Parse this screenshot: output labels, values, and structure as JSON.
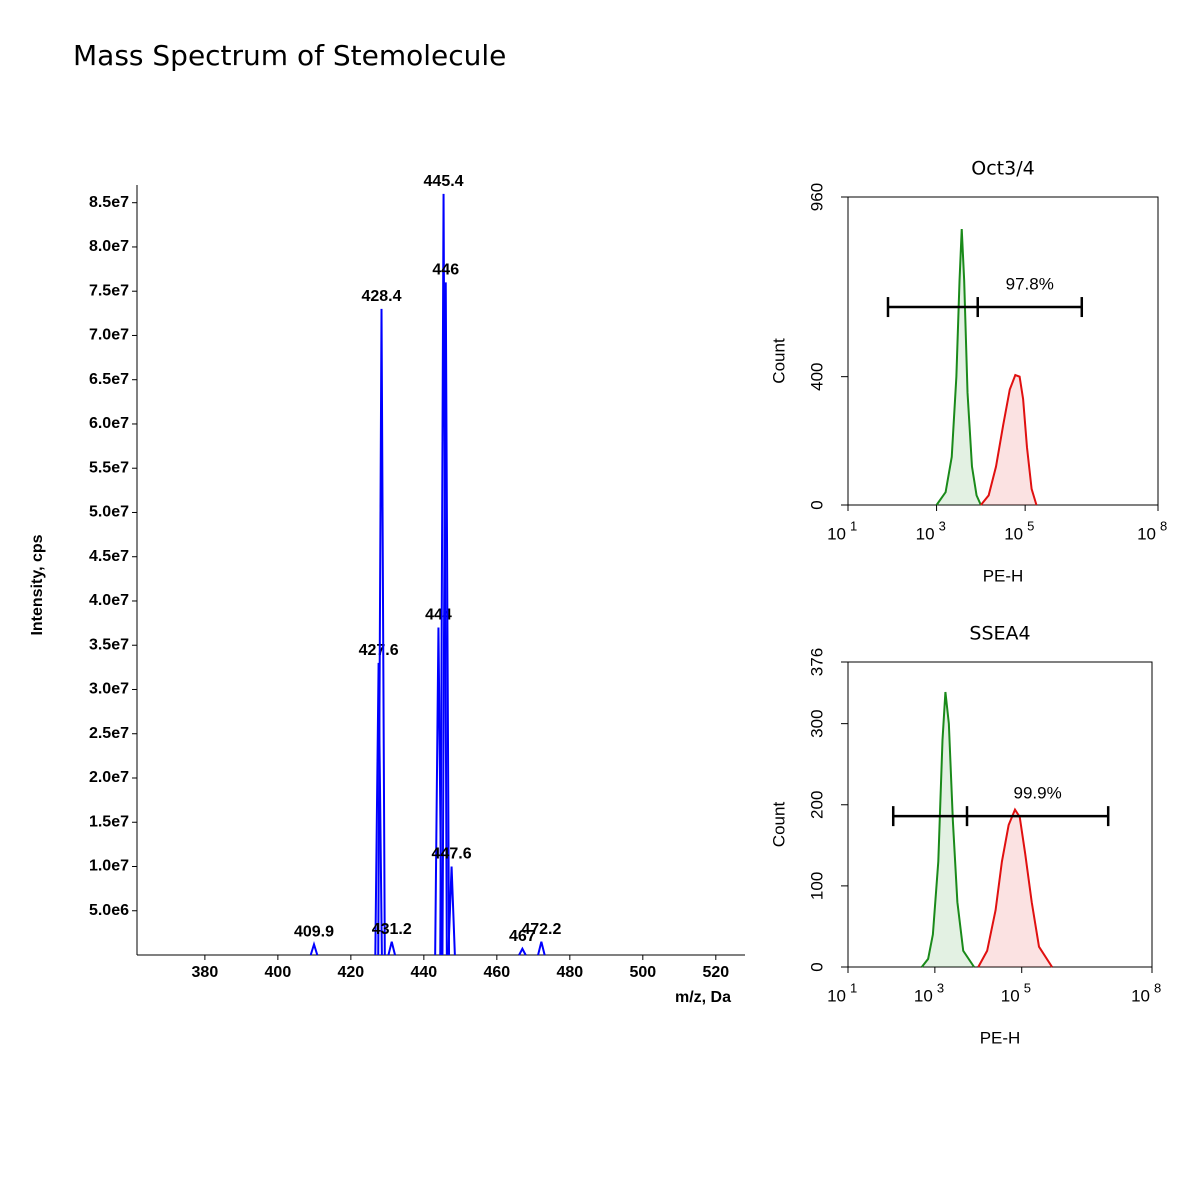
{
  "title": "Mass Spectrum of Stemolecule",
  "chart_data": [
    {
      "type": "spectrum",
      "x_label": "m/z, Da",
      "y_label": "Intensity, cps",
      "color": "#0000ff",
      "x": [
        409.9,
        427.6,
        428.4,
        431.2,
        444.0,
        445.4,
        446.0,
        447.6,
        467.0,
        472.2
      ],
      "values": [
        1200000,
        33000000,
        73000000,
        1500000,
        37000000,
        86000000,
        76000000,
        10000000,
        700000,
        1500000
      ],
      "xlim": [
        361.4,
        528
      ],
      "ylim": [
        0,
        87000000
      ],
      "xticks": [
        380,
        400,
        420,
        440,
        460,
        480,
        500,
        520
      ],
      "yticks": [
        {
          "value": 5000000,
          "label": "5.0e6"
        },
        {
          "value": 10000000,
          "label": "1.0e7"
        },
        {
          "value": 15000000,
          "label": "1.5e7"
        },
        {
          "value": 20000000,
          "label": "2.0e7"
        },
        {
          "value": 25000000,
          "label": "2.5e7"
        },
        {
          "value": 30000000,
          "label": "3.0e7"
        },
        {
          "value": 35000000,
          "label": "3.5e7"
        },
        {
          "value": 40000000,
          "label": "4.0e7"
        },
        {
          "value": 45000000,
          "label": "4.5e7"
        },
        {
          "value": 50000000,
          "label": "5.0e7"
        },
        {
          "value": 55000000,
          "label": "5.5e7"
        },
        {
          "value": 60000000,
          "label": "6.0e7"
        },
        {
          "value": 65000000,
          "label": "6.5e7"
        },
        {
          "value": 70000000,
          "label": "7.0e7"
        },
        {
          "value": 75000000,
          "label": "7.5e7"
        },
        {
          "value": 80000000,
          "label": "8.0e7"
        },
        {
          "value": 85000000,
          "label": "8.5e7"
        }
      ]
    },
    {
      "type": "histogram-overlay",
      "title": "Oct3/4",
      "x_label": "PE-H",
      "y_label": "Count",
      "log_x": true,
      "xlim": [
        10,
        100000000
      ],
      "ylim": [
        0,
        960
      ],
      "xticks": [
        {
          "value": 10,
          "label": "10",
          "exponent": "1"
        },
        {
          "value": 1000,
          "label": "10",
          "exponent": "3"
        },
        {
          "value": 100000,
          "label": "10",
          "exponent": "5"
        },
        {
          "value": 100000000,
          "label": "10",
          "exponent": "8"
        }
      ],
      "yticks": [
        0,
        400,
        960
      ],
      "series": [
        {
          "color": "#1a8a1a",
          "x": [
            1000,
            1600,
            2200,
            2800,
            3300,
            3700,
            4200,
            5000,
            6300,
            8000,
            10000
          ],
          "values": [
            0,
            40,
            150,
            400,
            700,
            860,
            700,
            350,
            120,
            30,
            0
          ]
        },
        {
          "color": "#e01010",
          "x": [
            10000,
            15000,
            22000,
            32000,
            45000,
            60000,
            75000,
            90000,
            110000,
            140000,
            180000
          ],
          "values": [
            0,
            30,
            120,
            250,
            360,
            405,
            400,
            330,
            180,
            50,
            0
          ]
        }
      ],
      "gate": {
        "x": [
          80,
          8500,
          1900000
        ],
        "y": 617,
        "value": 97.8,
        "value_label": "97.8%"
      }
    },
    {
      "type": "histogram-overlay",
      "title": "SSEA4",
      "x_label": "PE-H",
      "y_label": "Count",
      "log_x": true,
      "xlim": [
        10,
        100000000
      ],
      "ylim": [
        0,
        376
      ],
      "xticks": [
        {
          "value": 10,
          "label": "10",
          "exponent": "1"
        },
        {
          "value": 1000,
          "label": "10",
          "exponent": "3"
        },
        {
          "value": 100000,
          "label": "10",
          "exponent": "5"
        },
        {
          "value": 100000000,
          "label": "10",
          "exponent": "8"
        }
      ],
      "yticks": [
        0,
        100,
        200,
        300,
        376
      ],
      "series": [
        {
          "color": "#1a8a1a",
          "x": [
            500,
            700,
            900,
            1200,
            1500,
            1750,
            2100,
            2600,
            3300,
            4500,
            8000
          ],
          "values": [
            0,
            10,
            40,
            130,
            280,
            339,
            300,
            180,
            80,
            20,
            0
          ]
        },
        {
          "color": "#e01010",
          "x": [
            10000,
            16000,
            25000,
            35000,
            50000,
            70000,
            90000,
            120000,
            170000,
            250000,
            500000
          ],
          "values": [
            0,
            20,
            70,
            130,
            175,
            194,
            185,
            140,
            80,
            25,
            0
          ]
        }
      ],
      "gate": {
        "x": [
          110,
          5500,
          9800000
        ],
        "y": 186,
        "value": 99.9,
        "value_label": "99.9%"
      }
    }
  ]
}
